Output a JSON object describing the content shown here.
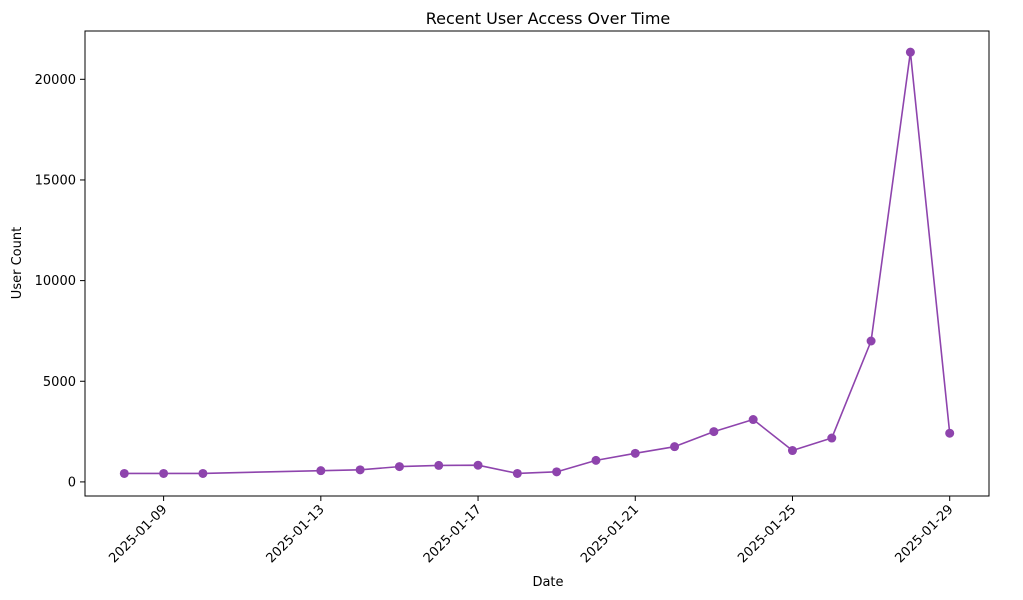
{
  "chart_data": {
    "type": "line",
    "title": "Recent User Access Over Time",
    "xlabel": "Date",
    "ylabel": "User Count",
    "xlim": [
      "2025-01-07",
      "2025-01-30"
    ],
    "ylim": [
      -700,
      22400
    ],
    "x_ticks": [
      "2025-01-09",
      "2025-01-13",
      "2025-01-17",
      "2025-01-21",
      "2025-01-25",
      "2025-01-29"
    ],
    "y_ticks": [
      0,
      5000,
      10000,
      15000,
      20000
    ],
    "grid": false,
    "legend": "none",
    "color": "#8e44ad",
    "x": [
      "2025-01-08",
      "2025-01-09",
      "2025-01-10",
      "2025-01-13",
      "2025-01-14",
      "2025-01-15",
      "2025-01-16",
      "2025-01-17",
      "2025-01-18",
      "2025-01-19",
      "2025-01-20",
      "2025-01-21",
      "2025-01-22",
      "2025-01-23",
      "2025-01-24",
      "2025-01-25",
      "2025-01-26",
      "2025-01-27",
      "2025-01-28",
      "2025-01-29"
    ],
    "values": [
      420,
      420,
      420,
      560,
      600,
      760,
      820,
      830,
      420,
      500,
      1070,
      1420,
      1750,
      2500,
      3100,
      1560,
      2180,
      7000,
      21350,
      2420
    ]
  }
}
